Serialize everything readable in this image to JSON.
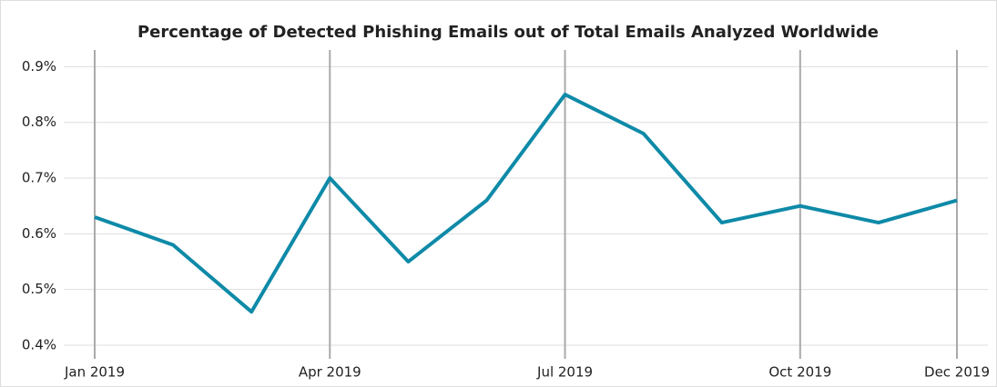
{
  "chart_data": {
    "type": "line",
    "title": "Percentage of Detected Phishing Emails out of Total Emails Analyzed Worldwide",
    "categories": [
      "Jan 2019",
      null,
      null,
      "Apr 2019",
      null,
      null,
      "Jul 2019",
      null,
      null,
      "Oct 2019",
      null,
      "Dec 2019"
    ],
    "series": [
      {
        "name": "Phishing emails",
        "color": "#0e8aa8",
        "values": [
          0.63,
          0.58,
          0.46,
          0.7,
          0.55,
          0.66,
          0.85,
          0.78,
          0.62,
          0.65,
          0.62,
          0.66
        ]
      }
    ],
    "ylim": [
      0.4,
      0.93
    ],
    "yticks": [
      {
        "value": 0.4,
        "label": "0.4%"
      },
      {
        "value": 0.5,
        "label": "0.5%"
      },
      {
        "value": 0.6,
        "label": "0.6%"
      },
      {
        "value": 0.7,
        "label": "0.7%"
      },
      {
        "value": 0.8,
        "label": "0.8%"
      },
      {
        "value": 0.9,
        "label": "0.9%"
      }
    ],
    "grid": true
  }
}
